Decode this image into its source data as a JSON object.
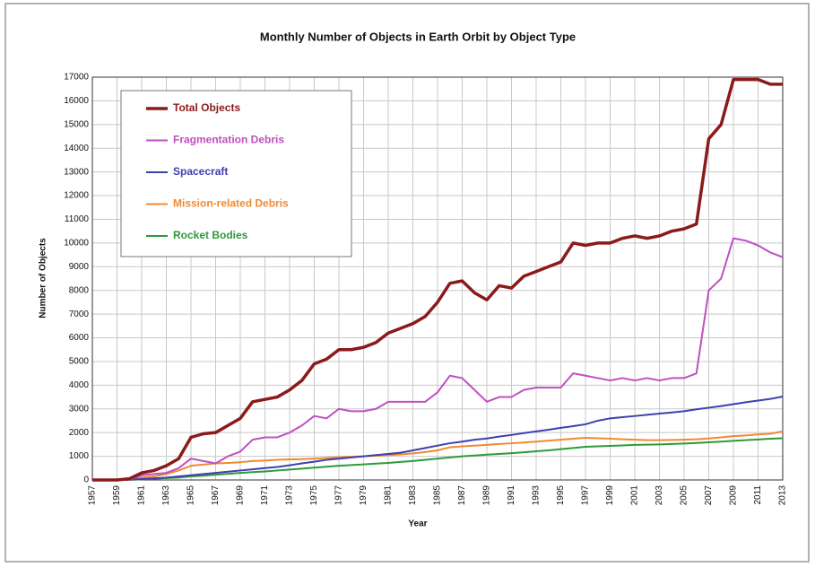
{
  "chart_data": {
    "type": "line",
    "title": "Monthly Number of Objects in Earth Orbit by Object Type",
    "x_label": "Year",
    "y_label": "Number of Objects",
    "x": [
      1957,
      1958,
      1959,
      1960,
      1961,
      1962,
      1963,
      1964,
      1965,
      1966,
      1967,
      1968,
      1969,
      1970,
      1971,
      1972,
      1973,
      1974,
      1975,
      1976,
      1977,
      1978,
      1979,
      1980,
      1981,
      1982,
      1983,
      1984,
      1985,
      1986,
      1987,
      1988,
      1989,
      1990,
      1991,
      1992,
      1993,
      1994,
      1995,
      1996,
      1997,
      1998,
      1999,
      2000,
      2001,
      2002,
      2003,
      2004,
      2005,
      2006,
      2007,
      2008,
      2009,
      2010,
      2011,
      2012,
      2013
    ],
    "series": [
      {
        "name": "Total Objects",
        "color": "#8b1a1a",
        "width": 3.5,
        "values": [
          0,
          0,
          0,
          50,
          300,
          400,
          600,
          900,
          1800,
          1950,
          2000,
          2300,
          2600,
          3300,
          3400,
          3500,
          3800,
          4200,
          4900,
          5100,
          5500,
          5500,
          5600,
          5800,
          6200,
          6400,
          6600,
          6900,
          7500,
          8300,
          8400,
          7900,
          7600,
          8200,
          8100,
          8600,
          8800,
          9000,
          9200,
          10000,
          9900,
          10000,
          10000,
          10200,
          10300,
          10200,
          10300,
          10500,
          10600,
          10800,
          14400,
          15000,
          16900,
          16900,
          16900,
          16700,
          16700
        ]
      },
      {
        "name": "Fragmentation Debris",
        "color": "#c04fc0",
        "width": 2,
        "values": [
          0,
          0,
          0,
          0,
          200,
          250,
          300,
          500,
          900,
          800,
          700,
          1000,
          1200,
          1700,
          1800,
          1800,
          2000,
          2300,
          2700,
          2600,
          3000,
          2900,
          2900,
          3000,
          3300,
          3300,
          3300,
          3300,
          3700,
          4400,
          4300,
          3800,
          3300,
          3500,
          3500,
          3800,
          3900,
          3900,
          3900,
          4500,
          4400,
          4300,
          4200,
          4300,
          4200,
          4300,
          4200,
          4300,
          4300,
          4500,
          8000,
          8500,
          10200,
          10100,
          9900,
          9600,
          9400
        ]
      },
      {
        "name": "Spacecraft",
        "color": "#3f3fb0",
        "width": 2,
        "values": [
          0,
          5,
          10,
          20,
          40,
          70,
          100,
          150,
          200,
          250,
          300,
          350,
          400,
          450,
          500,
          550,
          620,
          700,
          770,
          850,
          900,
          950,
          1000,
          1050,
          1100,
          1150,
          1250,
          1350,
          1450,
          1550,
          1620,
          1700,
          1750,
          1830,
          1900,
          1980,
          2050,
          2120,
          2200,
          2270,
          2350,
          2500,
          2600,
          2650,
          2700,
          2750,
          2800,
          2850,
          2900,
          2980,
          3050,
          3120,
          3200,
          3280,
          3350,
          3420,
          3520
        ]
      },
      {
        "name": "Mission-related Debris",
        "color": "#f08a30",
        "width": 2,
        "values": [
          0,
          0,
          0,
          0,
          100,
          150,
          250,
          400,
          600,
          650,
          700,
          720,
          750,
          800,
          820,
          850,
          870,
          880,
          900,
          930,
          960,
          980,
          1000,
          1020,
          1050,
          1080,
          1120,
          1180,
          1250,
          1380,
          1420,
          1450,
          1480,
          1520,
          1550,
          1580,
          1620,
          1660,
          1700,
          1740,
          1780,
          1760,
          1740,
          1720,
          1700,
          1680,
          1680,
          1690,
          1700,
          1720,
          1750,
          1800,
          1850,
          1880,
          1920,
          1950,
          2050
        ]
      },
      {
        "name": "Rocket Bodies",
        "color": "#2e9a3a",
        "width": 2,
        "values": [
          0,
          0,
          0,
          0,
          30,
          50,
          80,
          100,
          150,
          180,
          220,
          260,
          300,
          330,
          360,
          400,
          440,
          480,
          520,
          560,
          600,
          630,
          660,
          690,
          720,
          760,
          800,
          850,
          900,
          950,
          1000,
          1030,
          1070,
          1100,
          1130,
          1170,
          1210,
          1250,
          1300,
          1350,
          1400,
          1420,
          1440,
          1460,
          1480,
          1490,
          1500,
          1520,
          1540,
          1560,
          1590,
          1620,
          1650,
          1680,
          1710,
          1740,
          1760
        ]
      }
    ],
    "xlim": [
      1957,
      2013
    ],
    "xticks": [
      1957,
      1959,
      1961,
      1963,
      1965,
      1967,
      1969,
      1971,
      1973,
      1975,
      1977,
      1979,
      1981,
      1983,
      1985,
      1987,
      1989,
      1991,
      1993,
      1995,
      1997,
      1999,
      2001,
      2003,
      2005,
      2007,
      2009,
      2011,
      2013
    ],
    "ylim": [
      0,
      17000
    ],
    "yticks": [
      0,
      1000,
      2000,
      3000,
      4000,
      5000,
      6000,
      7000,
      8000,
      9000,
      10000,
      11000,
      12000,
      13000,
      14000,
      15000,
      16000,
      17000
    ],
    "grid": true,
    "legend": "upper left"
  }
}
